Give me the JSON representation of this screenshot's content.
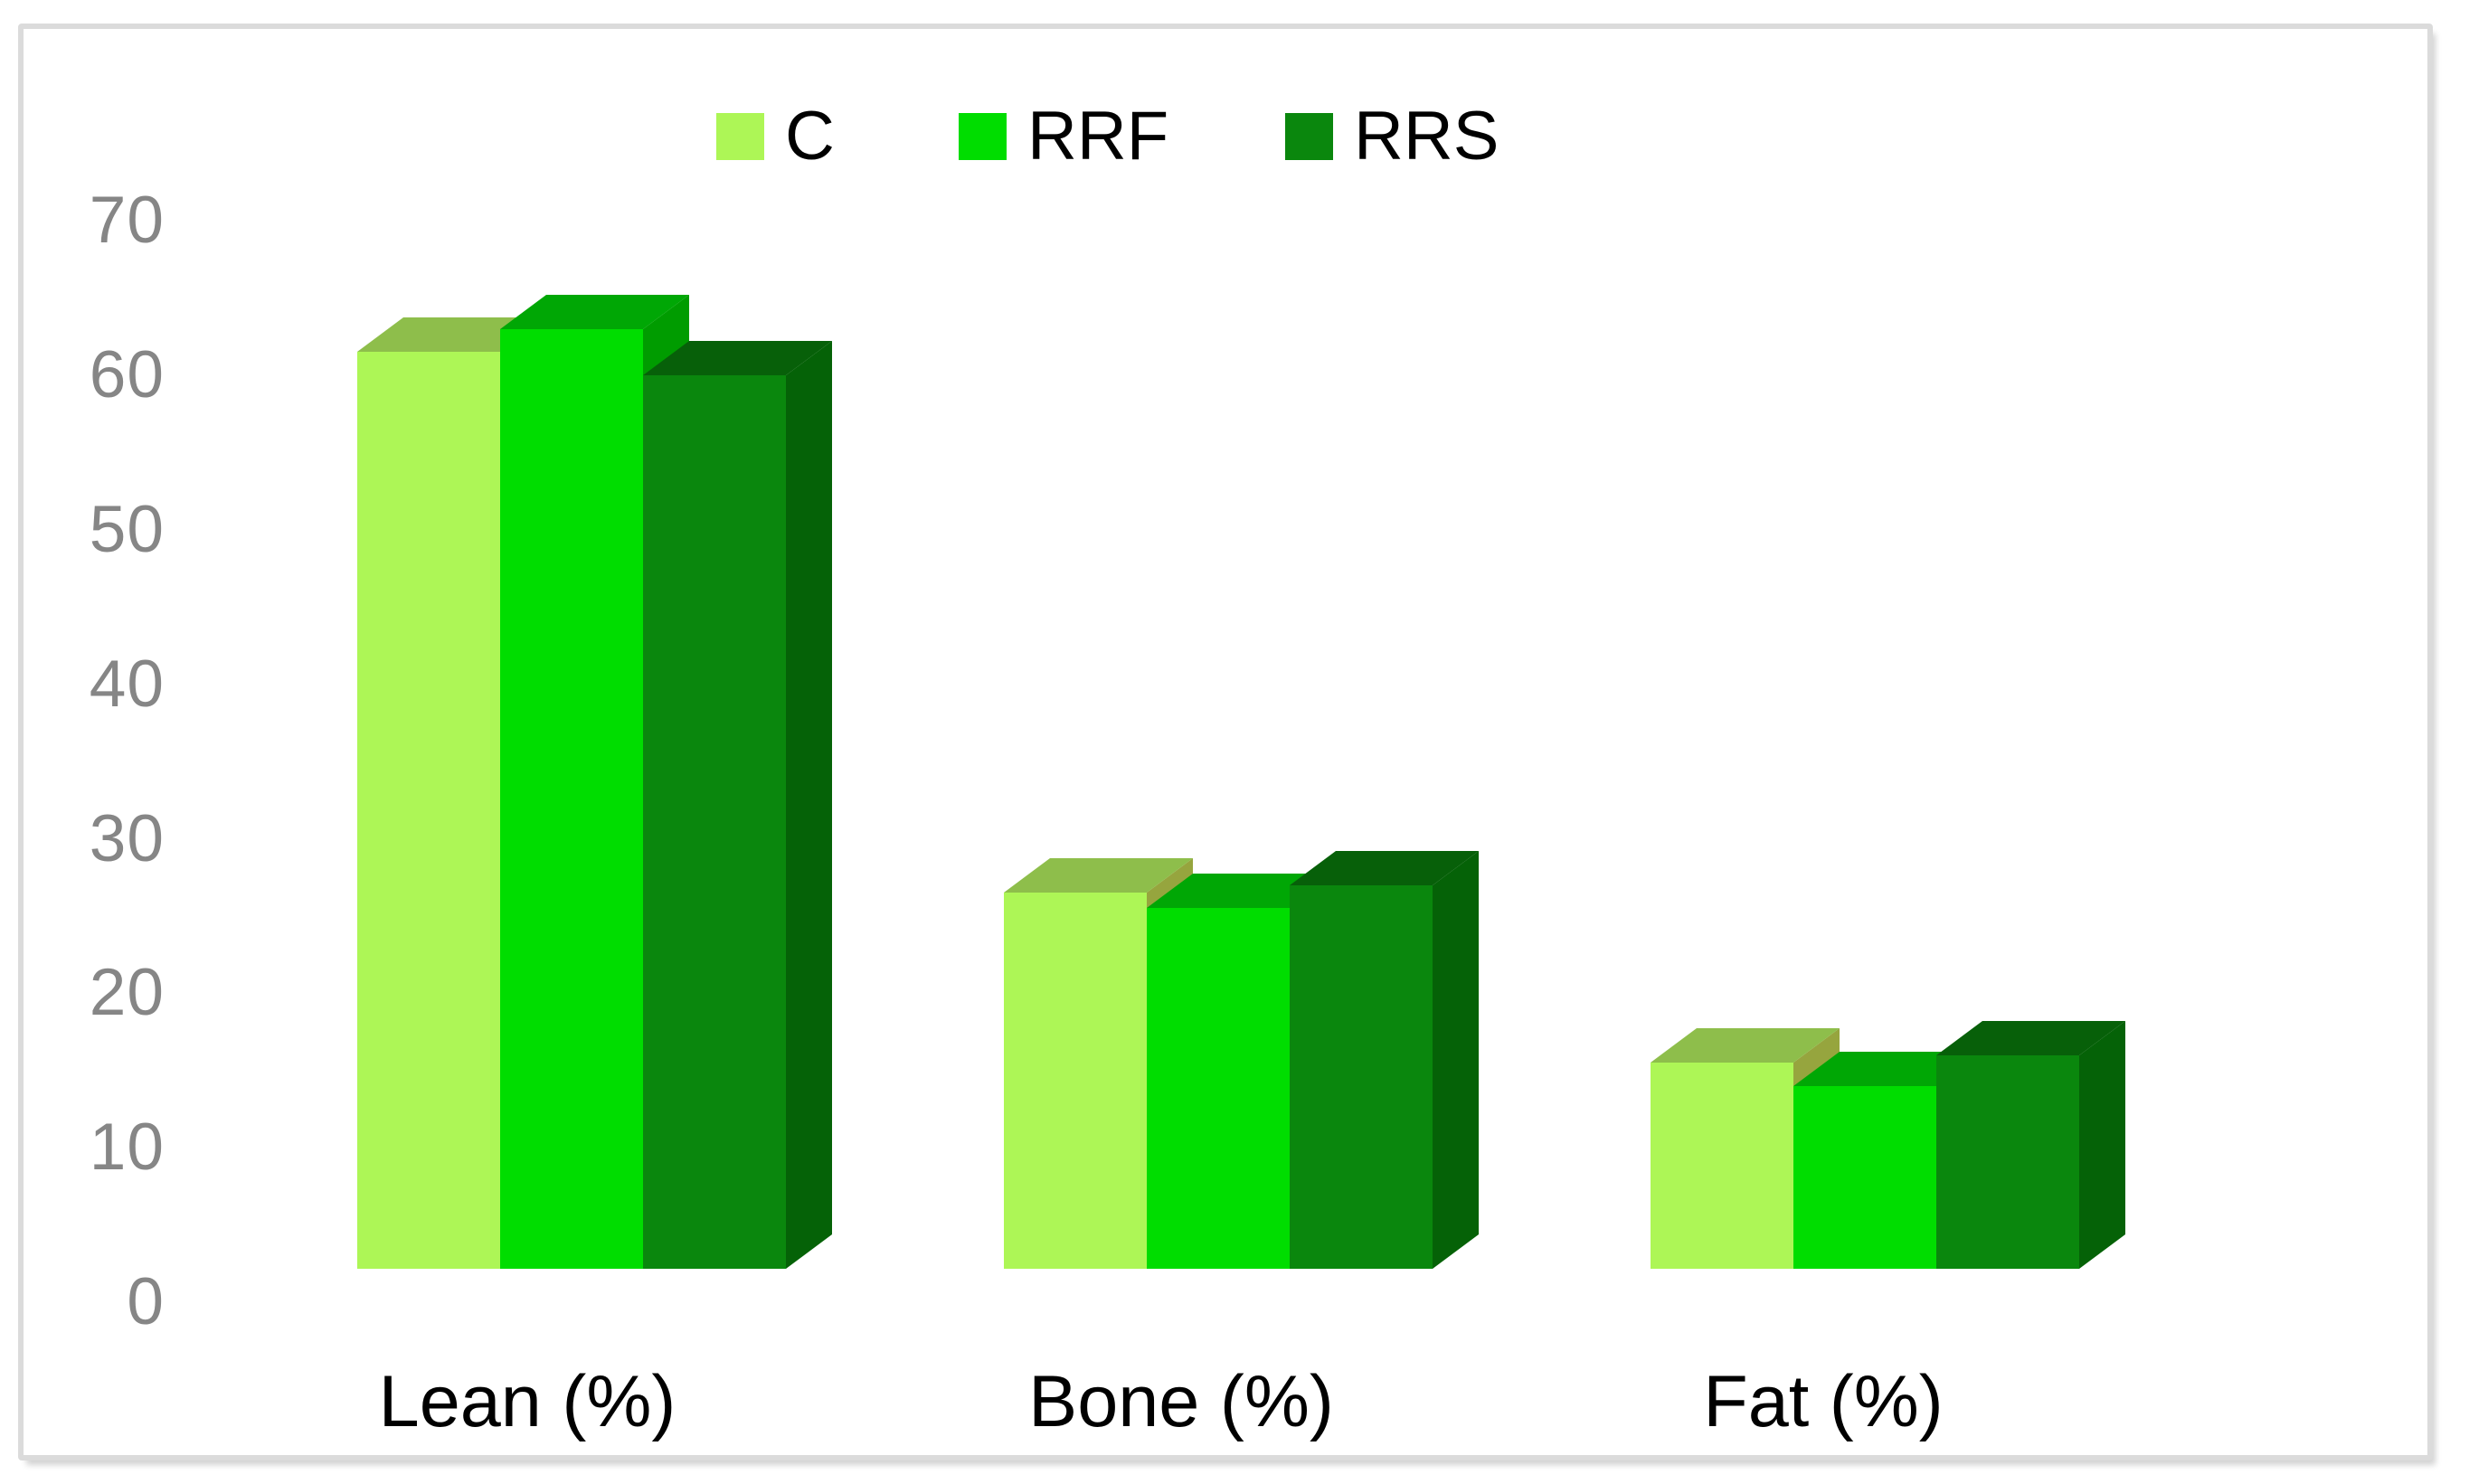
{
  "chart_data": {
    "type": "bar",
    "projection": "3d-clustered-column",
    "title": "",
    "xlabel": "",
    "ylabel": "",
    "categories": [
      "Lean (%)",
      "Bone (%)",
      "Fat (%)"
    ],
    "series": [
      {
        "name": "C",
        "values": [
          61.5,
          26.5,
          15.5
        ],
        "color": "#adf656",
        "color_top": "#8ebe4b",
        "color_side": "#96a53e"
      },
      {
        "name": "RRF",
        "values": [
          63,
          25.5,
          14
        ],
        "color": "#00dd00",
        "color_top": "#00a705",
        "color_side": "#009c00"
      },
      {
        "name": "RRS",
        "values": [
          60,
          27,
          16
        ],
        "color": "#0a870d",
        "color_top": "#076009",
        "color_side": "#056207"
      }
    ],
    "ylim": [
      0,
      70
    ],
    "yticks": [
      "0",
      "10",
      "20",
      "30",
      "40",
      "50",
      "60",
      "70"
    ],
    "grid": false,
    "legend_position": "top",
    "background_color": "#ffffff",
    "frame_border_color": "#dbdbdb",
    "tick_label_color": "#868686",
    "category_label_color": "#000000"
  }
}
